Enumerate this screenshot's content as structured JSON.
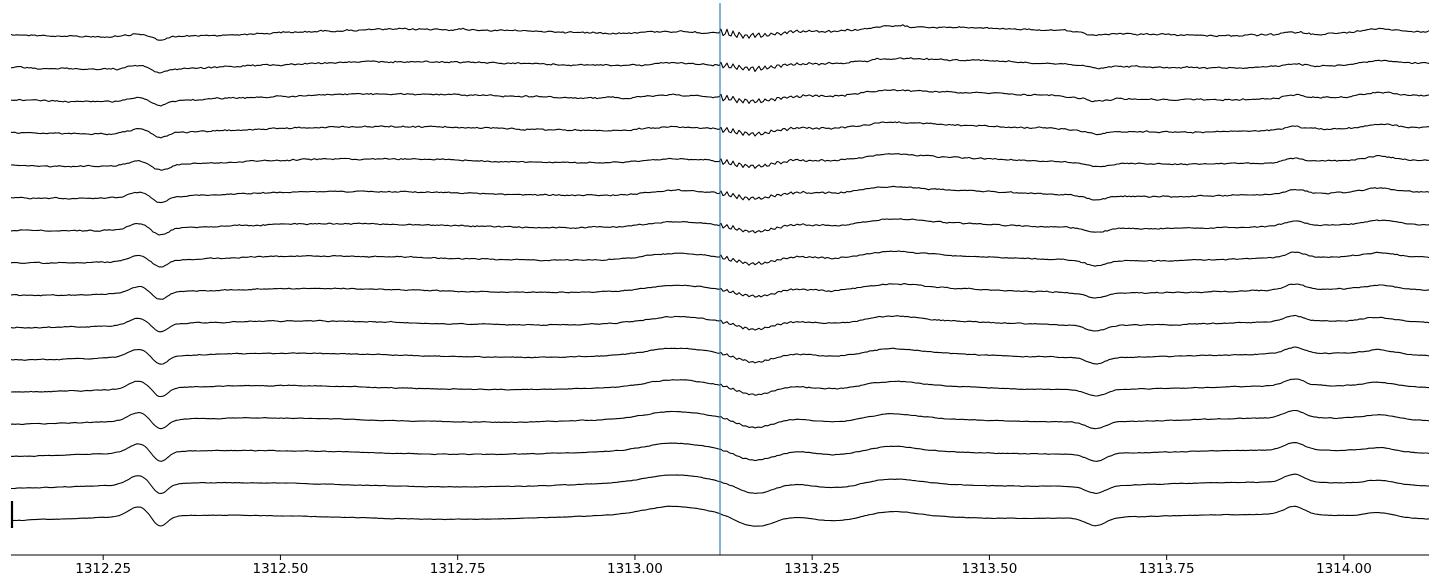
{
  "chart_data": {
    "type": "line",
    "title": "",
    "xlabel": "",
    "ylabel": "",
    "xlim": [
      1312.12,
      1314.12
    ],
    "x_ticks": [
      "1312.25",
      "1312.50",
      "1312.75",
      "1313.00",
      "1313.25",
      "1313.50",
      "1313.75",
      "1314.00"
    ],
    "x_tick_values": [
      1312.25,
      1312.5,
      1312.75,
      1313.0,
      1313.25,
      1313.5,
      1313.75,
      1314.0
    ],
    "channel_count": 16,
    "event_marker_time": 1313.12,
    "event_marker_color": "#1f77b4",
    "trace_color": "#000000",
    "grid": false,
    "legend": "none",
    "y_scale_bar": true
  }
}
